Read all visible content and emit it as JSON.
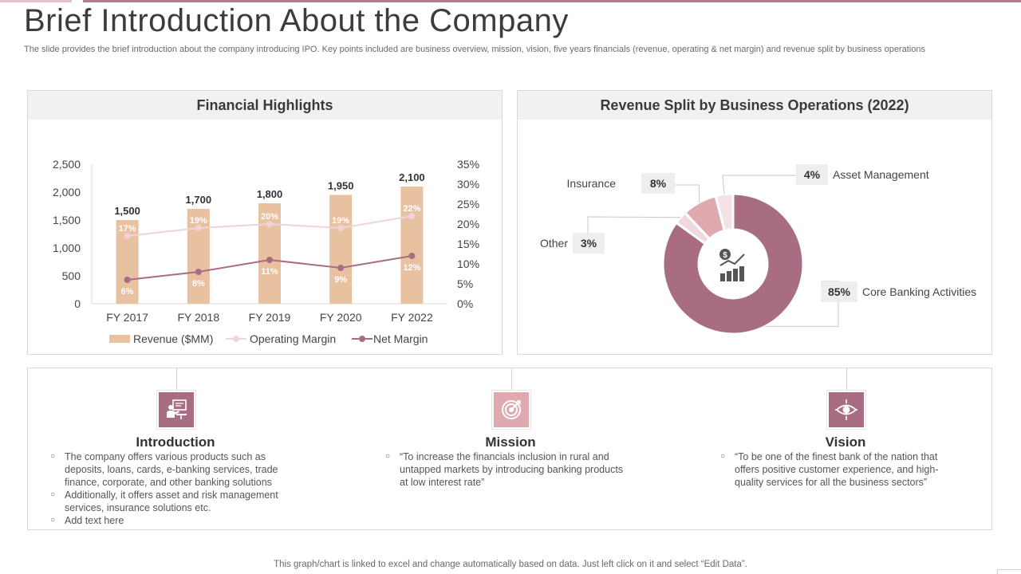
{
  "page": {
    "title": "Brief Introduction About the Company",
    "subtitle": "The slide provides the brief introduction about the company introducing IPO. Key points included are business overview, mission, vision, five years financials (revenue, operating & net margin) and revenue split by business operations",
    "footnote": "This graph/chart is linked to excel and change automatically based on data. Just left click on it and select “Edit Data”."
  },
  "colors": {
    "bar": "#e8c1a0",
    "operating": "#f0d3d8",
    "net": "#a86c83",
    "donut_core": "#a86c83",
    "donut_insurance": "#dfa9b0",
    "donut_other": "#f1d8dc",
    "donut_asset": "#f5e2e5",
    "icon_intro": "#a86c83",
    "icon_mission": "#dfa9b0",
    "icon_vision": "#a86c83"
  },
  "chart_data": [
    {
      "type": "bar",
      "title": "Financial Highlights",
      "categories": [
        "FY 2017",
        "FY 2018",
        "FY 2019",
        "FY 2020",
        "FY 2022"
      ],
      "y_ticks": [
        "0",
        "500",
        "1,000",
        "1,500",
        "2,000",
        "2,500"
      ],
      "y2_ticks": [
        "0%",
        "5%",
        "10%",
        "15%",
        "20%",
        "25%",
        "30%",
        "35%"
      ],
      "ylim": [
        0,
        2500
      ],
      "y2lim": [
        0,
        35
      ],
      "series": [
        {
          "name": "Revenue ($MM)",
          "kind": "bar",
          "values": [
            1500,
            1700,
            1800,
            1950,
            2100
          ],
          "labels": [
            "1,500",
            "1,700",
            "1,800",
            "1,950",
            "2,100"
          ]
        },
        {
          "name": "Operating Margin",
          "kind": "line",
          "values": [
            17,
            19,
            20,
            19,
            22
          ],
          "labels": [
            "17%",
            "19%",
            "20%",
            "19%",
            "22%"
          ]
        },
        {
          "name": "Net Margin",
          "kind": "line",
          "values": [
            6,
            8,
            11,
            9,
            12
          ],
          "labels": [
            "6%",
            "8%",
            "11%",
            "9%",
            "12%"
          ]
        }
      ]
    },
    {
      "type": "pie",
      "title": "Revenue Split by Business Operations (2022)",
      "slices": [
        {
          "name": "Core Banking Activities",
          "value": 85,
          "label": "85%"
        },
        {
          "name": "Other",
          "value": 3,
          "label": "3%"
        },
        {
          "name": "Insurance",
          "value": 8,
          "label": "8%"
        },
        {
          "name": "Asset Management",
          "value": 4,
          "label": "4%"
        }
      ]
    }
  ],
  "info": {
    "introduction": {
      "title": "Introduction",
      "items": [
        "The company offers various products such as deposits, loans, cards, e-banking services, trade finance, corporate, and other banking solutions",
        "Additionally, it offers asset and risk management services, insurance solutions etc.",
        "Add text here"
      ]
    },
    "mission": {
      "title": "Mission",
      "items": [
        "“To increase the financials inclusion in rural and untapped markets by introducing banking products at low interest rate”"
      ]
    },
    "vision": {
      "title": "Vision",
      "items": [
        "“To be one of the finest bank of the nation that offers positive customer experience, and high-quality services for all the business sectors”"
      ]
    }
  }
}
